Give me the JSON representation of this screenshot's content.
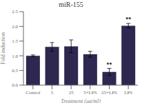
{
  "chart_data": {
    "type": "bar",
    "title": "miR-155",
    "xlabel": "Treatment (μg/ml)",
    "ylabel": "Fold induction",
    "categories": [
      "Control",
      "5",
      "25",
      "5+LPS",
      "25+LPS",
      "LPS"
    ],
    "values": [
      1.0,
      1.3,
      1.32,
      1.05,
      0.45,
      2.02
    ],
    "errors": [
      0.03,
      0.15,
      0.22,
      0.1,
      0.12,
      0.08
    ],
    "color": "#2e2850",
    "ylim": [
      0,
      2.5
    ],
    "yticks": [
      {
        "value": 0.0,
        "label": "0.0"
      },
      0.5,
      {
        "value": 1.0,
        "label": "1.0"
      },
      1.5,
      {
        "value": 2.0,
        "label": "2.0"
      },
      2.5
    ],
    "grid": false,
    "annotations": [
      {
        "category": "25+LPS",
        "text": "**"
      },
      {
        "category": "LPS",
        "text": "**"
      }
    ]
  }
}
